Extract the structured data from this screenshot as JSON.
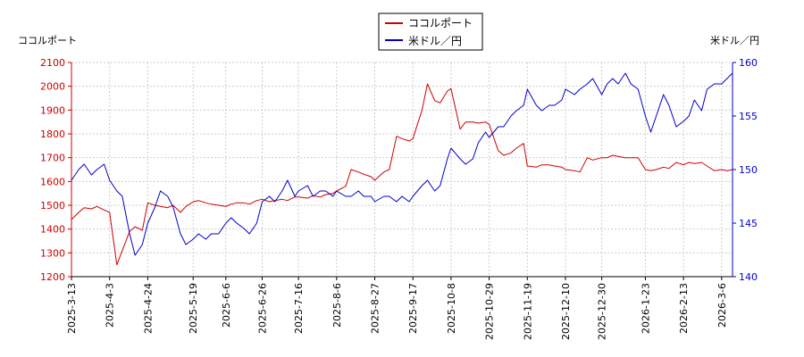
{
  "chart_data": {
    "type": "line",
    "left_axis_label": "ココルポート",
    "right_axis_label": "米ドル／円",
    "legend": [
      "ココルポート",
      "米ドル／円"
    ],
    "legend_placement": "top-center",
    "grid": true,
    "colors": {
      "left_series": "#cc0000",
      "right_series": "#0000cc",
      "grid": "#cccccc"
    },
    "x_dates": [
      "2025-3-13",
      "2025-3-17",
      "2025-3-20",
      "2025-3-24",
      "2025-3-27",
      "2025-3-31",
      "2025-4-3",
      "2025-4-7",
      "2025-4-10",
      "2025-4-14",
      "2025-4-17",
      "2025-4-21",
      "2025-4-24",
      "2025-4-28",
      "2025-5-1",
      "2025-5-5",
      "2025-5-8",
      "2025-5-12",
      "2025-5-15",
      "2025-5-19",
      "2025-5-22",
      "2025-5-26",
      "2025-5-29",
      "2025-6-2",
      "2025-6-6",
      "2025-6-9",
      "2025-6-12",
      "2025-6-16",
      "2025-6-19",
      "2025-6-23",
      "2025-6-26",
      "2025-6-30",
      "2025-7-3",
      "2025-7-7",
      "2025-7-10",
      "2025-7-14",
      "2025-7-16",
      "2025-7-21",
      "2025-7-24",
      "2025-7-28",
      "2025-7-31",
      "2025-8-4",
      "2025-8-6",
      "2025-8-11",
      "2025-8-14",
      "2025-8-18",
      "2025-8-21",
      "2025-8-25",
      "2025-8-27",
      "2025-9-1",
      "2025-9-4",
      "2025-9-8",
      "2025-9-11",
      "2025-9-15",
      "2025-9-17",
      "2025-9-22",
      "2025-9-25",
      "2025-9-29",
      "2025-10-2",
      "2025-10-6",
      "2025-10-8",
      "2025-10-13",
      "2025-10-16",
      "2025-10-20",
      "2025-10-23",
      "2025-10-27",
      "2025-10-29",
      "2025-11-3",
      "2025-11-6",
      "2025-11-10",
      "2025-11-13",
      "2025-11-17",
      "2025-11-19",
      "2025-11-24",
      "2025-11-27",
      "2025-12-1",
      "2025-12-4",
      "2025-12-8",
      "2025-12-10",
      "2025-12-15",
      "2025-12-18",
      "2025-12-22",
      "2025-12-25",
      "2025-12-30",
      "2026-1-2",
      "2026-1-5",
      "2026-1-8",
      "2026-1-12",
      "2026-1-15",
      "2026-1-19",
      "2026-1-23",
      "2026-1-26",
      "2026-1-29",
      "2026-2-2",
      "2026-2-5",
      "2026-2-9",
      "2026-2-13",
      "2026-2-16",
      "2026-2-19",
      "2026-2-23",
      "2026-2-26",
      "2026-3-2",
      "2026-3-6",
      "2026-3-9",
      "2026-3-12"
    ],
    "x_ticks": [
      "2025-3-13",
      "2025-4-3",
      "2025-4-24",
      "2025-5-19",
      "2025-6-6",
      "2025-6-26",
      "2025-7-16",
      "2025-8-6",
      "2025-8-27",
      "2025-9-17",
      "2025-10-8",
      "2025-10-29",
      "2025-11-19",
      "2025-12-10",
      "2025-12-30",
      "2026-1-23",
      "2026-2-13",
      "2026-3-6"
    ],
    "left_axis": {
      "ylim": [
        1200,
        2100
      ],
      "ticks": [
        1200,
        1300,
        1400,
        1500,
        1600,
        1700,
        1800,
        1900,
        2000,
        2100
      ]
    },
    "right_axis": {
      "ylim": [
        140,
        160
      ],
      "ticks": [
        140,
        145,
        150,
        155,
        160
      ]
    },
    "series": [
      {
        "name": "ココルポート",
        "axis": "left",
        "values": [
          1440,
          1470,
          1490,
          1485,
          1495,
          1480,
          1470,
          1250,
          1310,
          1390,
          1410,
          1395,
          1510,
          1500,
          1495,
          1490,
          1500,
          1470,
          1495,
          1515,
          1520,
          1510,
          1505,
          1500,
          1495,
          1505,
          1510,
          1510,
          1505,
          1520,
          1525,
          1515,
          1520,
          1525,
          1520,
          1535,
          1535,
          1530,
          1540,
          1535,
          1545,
          1550,
          1560,
          1580,
          1650,
          1640,
          1630,
          1620,
          1605,
          1640,
          1650,
          1790,
          1780,
          1770,
          1780,
          1900,
          2010,
          1940,
          1930,
          1980,
          1990,
          1820,
          1850,
          1850,
          1845,
          1850,
          1840,
          1730,
          1710,
          1720,
          1740,
          1760,
          1665,
          1660,
          1670,
          1670,
          1665,
          1660,
          1650,
          1645,
          1640,
          1700,
          1690,
          1700,
          1700,
          1710,
          1705,
          1700,
          1700,
          1700,
          1650,
          1645,
          1650,
          1660,
          1655,
          1680,
          1670,
          1680,
          1675,
          1680,
          1665,
          1645,
          1650,
          1645,
          1650
        ]
      },
      {
        "name": "米ドル／円",
        "axis": "right",
        "values": [
          149.0,
          150.0,
          150.5,
          149.5,
          150.0,
          150.5,
          149.0,
          148.0,
          147.5,
          144.0,
          142.0,
          143.0,
          145.0,
          146.5,
          148.0,
          147.5,
          146.5,
          144.0,
          143.0,
          143.5,
          144.0,
          143.5,
          144.0,
          144.0,
          145.0,
          145.5,
          145.0,
          144.5,
          144.0,
          145.0,
          147.0,
          147.5,
          147.0,
          148.0,
          149.0,
          147.5,
          148.0,
          148.5,
          147.5,
          148.0,
          148.0,
          147.5,
          148.0,
          147.5,
          147.5,
          148.0,
          147.5,
          147.5,
          147.0,
          147.5,
          147.5,
          147.0,
          147.5,
          147.0,
          147.5,
          148.5,
          149.0,
          148.0,
          148.5,
          151.0,
          152.0,
          151.0,
          150.5,
          151.0,
          152.5,
          153.5,
          153.0,
          154.0,
          154.0,
          155.0,
          155.5,
          156.0,
          157.5,
          156.0,
          155.5,
          156.0,
          156.0,
          156.5,
          157.5,
          157.0,
          157.5,
          158.0,
          158.5,
          157.0,
          158.0,
          158.5,
          158.0,
          159.0,
          158.0,
          157.5,
          155.0,
          153.5,
          155.0,
          157.0,
          156.0,
          154.0,
          154.5,
          155.0,
          156.5,
          155.5,
          157.5,
          158.0,
          158.0,
          158.5,
          159.0
        ]
      }
    ]
  }
}
